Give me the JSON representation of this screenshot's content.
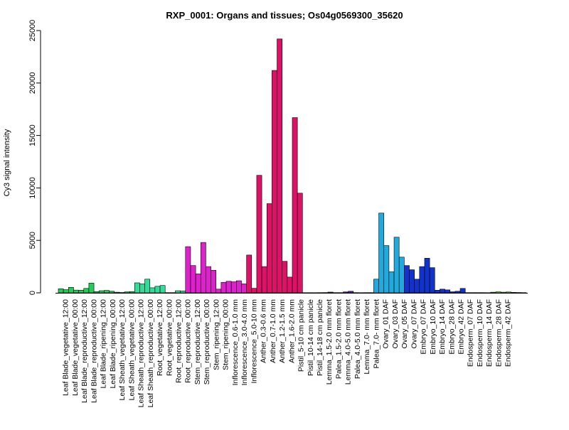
{
  "chart_data": {
    "type": "bar",
    "title": "RXP_0001: Organs and tissues; Os04g0569300_35620",
    "xlabel": "",
    "ylabel": "Cy3 signal intensity",
    "ylim": [
      0,
      25000
    ],
    "yticks": [
      0,
      5000,
      10000,
      15000,
      20000,
      25000
    ],
    "grid": false,
    "legend": "none",
    "group_labels": [
      "Leaf Blade_vegetative_12:00",
      "Leaf Blade_vegetative_00:00",
      "Leaf Blade_reproductive_12:00",
      "Leaf Blade_reproductive_00:00",
      "Leaf Blade_ripening_12:00",
      "Leaf Blade_ripening_00:00",
      "Leaf Sheath_vegetative_12:00",
      "Leaf Sheath_vegetative_00:00",
      "Leaf Sheath_reproductive_12:00",
      "Leaf Sheath_reproductive_00:00",
      "Root_vegetative_12:00",
      "Root_vegetative_00:00",
      "Root_reproductive_12:00",
      "Root_reproductive_00:00",
      "Stem_reproductive_12:00",
      "Stem_reproductive_00:00",
      "Stem_ripening_12:00",
      "Stem_ripening_00:00",
      "Inflorescence_0.6-1.0 mm",
      "Inflorescence_3.0-4.0 mm",
      "Inflorescence_5.0-10 mm",
      "Anther_0.3-0.6 mm",
      "Anther_0.7-1.0 mm",
      "Anther_1.2-1.5 mm",
      "Anther_1.6-2.0 mm",
      "Pistil_5-10 cm panicle",
      "Pistil_10-14 cm panicle",
      "Pistil_14-18 cm panicle",
      "Lemma_1.5-2.0 mm floret",
      "Palea_1.5-2.0 mm floret",
      "Lemma_4.0-5.0 mm floret",
      "Palea_4.0-5.0 mm floret",
      "Lemma_7.0- mm floret",
      "Palea_7.0- mm floret",
      "Ovary_01 DAF",
      "Ovary_03 DAF",
      "Ovary_05 DAF",
      "Ovary_07 DAF",
      "Embryo_07 DAF",
      "Embryo_10 DAF",
      "Embryo_14 DAF",
      "Embryo_28 DAF",
      "Embryo_42 DAF",
      "Endosperm_07 DAF",
      "Endosperm_10 DAF",
      "Endosperm_14 DAF",
      "Endosperm_28 DAF",
      "Endosperm_42 DAF"
    ],
    "bars": [
      {
        "group": 0,
        "value": 380,
        "color": "#22cc55"
      },
      {
        "group": 0,
        "value": 300,
        "color": "#22cc55"
      },
      {
        "group": 0,
        "value": 520,
        "color": "#22cc55"
      },
      {
        "group": 1,
        "value": 260,
        "color": "#22cc55"
      },
      {
        "group": 1,
        "value": 250,
        "color": "#22cc55"
      },
      {
        "group": 1,
        "value": 420,
        "color": "#22cc55"
      },
      {
        "group": 2,
        "value": 920,
        "color": "#22cc55"
      },
      {
        "group": 2,
        "value": 120,
        "color": "#22cc55"
      },
      {
        "group": 3,
        "value": 200,
        "color": "#22cc55"
      },
      {
        "group": 3,
        "value": 230,
        "color": "#22cc55"
      },
      {
        "group": 3,
        "value": 150,
        "color": "#22cc55"
      },
      {
        "group": 4,
        "value": 60,
        "color": "#22cc55"
      },
      {
        "group": 4,
        "value": 30,
        "color": "#22cc55"
      },
      {
        "group": 5,
        "value": 90,
        "color": "#22cc55"
      },
      {
        "group": 5,
        "value": 120,
        "color": "#22cc55"
      },
      {
        "group": 6,
        "value": 950,
        "color": "#33dd99"
      },
      {
        "group": 6,
        "value": 850,
        "color": "#33dd99"
      },
      {
        "group": 6,
        "value": 1300,
        "color": "#33dd99"
      },
      {
        "group": 7,
        "value": 480,
        "color": "#33dd99"
      },
      {
        "group": 7,
        "value": 620,
        "color": "#33dd99"
      },
      {
        "group": 7,
        "value": 700,
        "color": "#33dd99"
      },
      {
        "group": 8,
        "value": 20,
        "color": "#33dd99"
      },
      {
        "group": 8,
        "value": 20,
        "color": "#33dd99"
      },
      {
        "group": 9,
        "value": 200,
        "color": "#33dd99"
      },
      {
        "group": 9,
        "value": 180,
        "color": "#33dd99"
      },
      {
        "group": 10,
        "value": 4400,
        "color": "#dd22cc"
      },
      {
        "group": 10,
        "value": 2600,
        "color": "#dd22cc"
      },
      {
        "group": 10,
        "value": 1800,
        "color": "#dd22cc"
      },
      {
        "group": 11,
        "value": 4800,
        "color": "#dd22cc"
      },
      {
        "group": 11,
        "value": 2500,
        "color": "#dd22cc"
      },
      {
        "group": 11,
        "value": 2150,
        "color": "#dd22cc"
      },
      {
        "group": 12,
        "value": 350,
        "color": "#dd22cc"
      },
      {
        "group": 12,
        "value": 1000,
        "color": "#dd22cc"
      },
      {
        "group": 12,
        "value": 1100,
        "color": "#dd22cc"
      },
      {
        "group": 13,
        "value": 1050,
        "color": "#dd22cc"
      },
      {
        "group": 13,
        "value": 1150,
        "color": "#dd22cc"
      },
      {
        "group": 13,
        "value": 850,
        "color": "#dd22cc"
      },
      {
        "group": 14,
        "value": 3600,
        "color": "#dd1166"
      },
      {
        "group": 14,
        "value": 430,
        "color": "#dd1166"
      },
      {
        "group": 15,
        "value": 11200,
        "color": "#dd1166"
      },
      {
        "group": 15,
        "value": 2500,
        "color": "#dd1166"
      },
      {
        "group": 15,
        "value": 8500,
        "color": "#dd1166"
      },
      {
        "group": 16,
        "value": 21200,
        "color": "#dd1166"
      },
      {
        "group": 16,
        "value": 24200,
        "color": "#dd1166"
      },
      {
        "group": 16,
        "value": 3000,
        "color": "#dd1166"
      },
      {
        "group": 17,
        "value": 1500,
        "color": "#dd1166"
      },
      {
        "group": 17,
        "value": 16700,
        "color": "#dd1166"
      },
      {
        "group": 17,
        "value": 9500,
        "color": "#dd1166"
      },
      {
        "group": 18,
        "value": 15,
        "color": "#5522aa"
      },
      {
        "group": 19,
        "value": 15,
        "color": "#5522aa"
      },
      {
        "group": 20,
        "value": 15,
        "color": "#5522aa"
      },
      {
        "group": 21,
        "value": 20,
        "color": "#5522aa"
      },
      {
        "group": 22,
        "value": 25,
        "color": "#5522aa"
      },
      {
        "group": 23,
        "value": 70,
        "color": "#5522aa"
      },
      {
        "group": 24,
        "value": 20,
        "color": "#5522aa"
      },
      {
        "group": 25,
        "value": 20,
        "color": "#5522aa"
      },
      {
        "group": 26,
        "value": 90,
        "color": "#5522aa"
      },
      {
        "group": 27,
        "value": 150,
        "color": "#5522aa"
      },
      {
        "group": 28,
        "value": 20,
        "color": "#5522aa"
      },
      {
        "group": 29,
        "value": 15,
        "color": "#5522aa"
      },
      {
        "group": 30,
        "value": 20,
        "color": "#5522aa"
      },
      {
        "group": 31,
        "value": 20,
        "color": "#5522aa"
      },
      {
        "group": 32,
        "value": 1300,
        "color": "#22aadd"
      },
      {
        "group": 32,
        "value": 7600,
        "color": "#22aadd"
      },
      {
        "group": 32,
        "value": 4500,
        "color": "#22aadd"
      },
      {
        "group": 33,
        "value": 2000,
        "color": "#22aadd"
      },
      {
        "group": 33,
        "value": 5300,
        "color": "#22aadd"
      },
      {
        "group": 33,
        "value": 3400,
        "color": "#22aadd"
      },
      {
        "group": 34,
        "value": 2600,
        "color": "#1133cc"
      },
      {
        "group": 34,
        "value": 2200,
        "color": "#1133cc"
      },
      {
        "group": 34,
        "value": 1300,
        "color": "#1133cc"
      },
      {
        "group": 35,
        "value": 2500,
        "color": "#1133cc"
      },
      {
        "group": 35,
        "value": 3300,
        "color": "#1133cc"
      },
      {
        "group": 35,
        "value": 2400,
        "color": "#1133cc"
      },
      {
        "group": 36,
        "value": 250,
        "color": "#1133cc"
      },
      {
        "group": 36,
        "value": 350,
        "color": "#1133cc"
      },
      {
        "group": 36,
        "value": 280,
        "color": "#1133cc"
      },
      {
        "group": 37,
        "value": 100,
        "color": "#1133cc"
      },
      {
        "group": 37,
        "value": 150,
        "color": "#1133cc"
      },
      {
        "group": 37,
        "value": 420,
        "color": "#1133cc"
      },
      {
        "group": 38,
        "value": 20,
        "color": "#113399"
      },
      {
        "group": 39,
        "value": 20,
        "color": "#113399"
      },
      {
        "group": 40,
        "value": 20,
        "color": "#113399"
      },
      {
        "group": 41,
        "value": 20,
        "color": "#113399"
      },
      {
        "group": 42,
        "value": 15,
        "color": "#113399"
      },
      {
        "group": 43,
        "value": 60,
        "color": "#66cc22"
      },
      {
        "group": 43,
        "value": 90,
        "color": "#66cc22"
      },
      {
        "group": 44,
        "value": 60,
        "color": "#66cc22"
      },
      {
        "group": 44,
        "value": 80,
        "color": "#66cc22"
      },
      {
        "group": 45,
        "value": 40,
        "color": "#66cc22"
      },
      {
        "group": 46,
        "value": 30,
        "color": "#66cc22"
      },
      {
        "group": 47,
        "value": 20,
        "color": "#66cc22"
      }
    ]
  }
}
